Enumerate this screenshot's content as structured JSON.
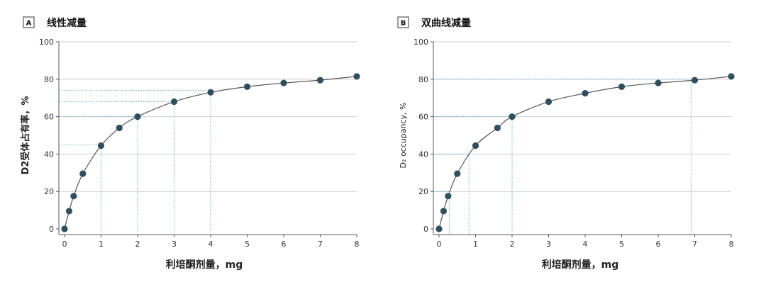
{
  "chart_data": [
    {
      "id": "A",
      "type": "line",
      "panel_label": "A",
      "title": "线性减量",
      "xlabel": "利培酮剂量，mg",
      "ylabel": "D2受体占有率，%",
      "xlim": [
        0,
        8
      ],
      "ylim": [
        0,
        100
      ],
      "xticks": [
        0,
        1,
        2,
        3,
        4,
        5,
        6,
        7,
        8
      ],
      "yticks": [
        0,
        20,
        40,
        60,
        80,
        100
      ],
      "grid": true,
      "points": [
        {
          "x": 0,
          "y": 0
        },
        {
          "x": 0.125,
          "y": 9.5
        },
        {
          "x": 0.25,
          "y": 17.5
        },
        {
          "x": 0.5,
          "y": 29.5
        },
        {
          "x": 1,
          "y": 44.5
        },
        {
          "x": 1.5,
          "y": 54
        },
        {
          "x": 2,
          "y": 60
        },
        {
          "x": 3,
          "y": 68
        },
        {
          "x": 4,
          "y": 73
        },
        {
          "x": 5,
          "y": 76
        },
        {
          "x": 6,
          "y": 78
        },
        {
          "x": 7,
          "y": 79.5
        },
        {
          "x": 8,
          "y": 81.5
        }
      ],
      "guides": [
        {
          "x": 4,
          "y": 74
        },
        {
          "x": 3,
          "y": 68
        },
        {
          "x": 2,
          "y": 60
        },
        {
          "x": 1,
          "y": 45
        }
      ]
    },
    {
      "id": "B",
      "type": "line",
      "panel_label": "B",
      "title": "双曲线减量",
      "xlabel": "利培酮剂量，mg",
      "ylabel": "D₂ occupancy, %",
      "xlim": [
        0,
        8
      ],
      "ylim": [
        0,
        100
      ],
      "xticks": [
        0,
        1,
        2,
        3,
        4,
        5,
        6,
        7,
        8
      ],
      "yticks": [
        0,
        20,
        40,
        60,
        80,
        100
      ],
      "grid": true,
      "points": [
        {
          "x": 0,
          "y": 0
        },
        {
          "x": 0.125,
          "y": 9.5
        },
        {
          "x": 0.25,
          "y": 17.5
        },
        {
          "x": 0.5,
          "y": 29.5
        },
        {
          "x": 1,
          "y": 44.5
        },
        {
          "x": 1.6,
          "y": 54
        },
        {
          "x": 2,
          "y": 60
        },
        {
          "x": 3,
          "y": 68
        },
        {
          "x": 4,
          "y": 72.5
        },
        {
          "x": 5,
          "y": 76
        },
        {
          "x": 6,
          "y": 78
        },
        {
          "x": 7,
          "y": 79.5
        },
        {
          "x": 8,
          "y": 81.5
        }
      ],
      "guides": [
        {
          "x": 6.9,
          "y": 80
        },
        {
          "x": 2,
          "y": 60
        },
        {
          "x": 0.82,
          "y": 40
        },
        {
          "x": 0.28,
          "y": 20
        }
      ]
    }
  ]
}
